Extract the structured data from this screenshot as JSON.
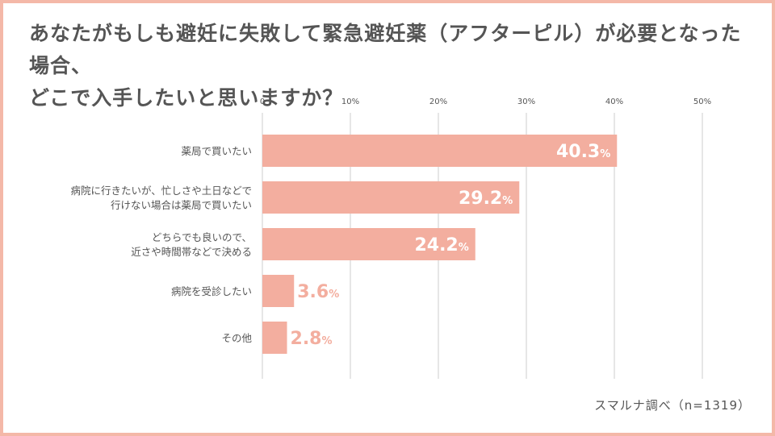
{
  "title": {
    "line1": "あなたがもしも避妊に失敗して緊急避妊薬（アフターピル）が必要となった場合、",
    "line2": "どこで入手したいと思いますか？"
  },
  "source": "スマルナ調べ（n=1319）",
  "colors": {
    "bar": "#f3ae9f",
    "label": "#f3ae9f",
    "label_inside": "#ffffff",
    "grid": "#cccccc",
    "text": "#555555",
    "frame": "#f4b8a8"
  },
  "chart_data": {
    "type": "bar",
    "orientation": "horizontal",
    "categories": [
      [
        "薬局で買いたい"
      ],
      [
        "病院に行きたいが、忙しさや土日などで",
        "行けない場合は薬局で買いたい"
      ],
      [
        "どちらでも良いので、",
        "近さや時間帯などで決める"
      ],
      [
        "病院を受診したい"
      ],
      [
        "その他"
      ]
    ],
    "values": [
      40.3,
      29.2,
      24.2,
      3.6,
      2.8
    ],
    "unit": "%",
    "xlim": [
      0,
      50
    ],
    "ticks": [
      "0",
      "10%",
      "20%",
      "30%",
      "40%",
      "50%"
    ],
    "grid": true
  }
}
